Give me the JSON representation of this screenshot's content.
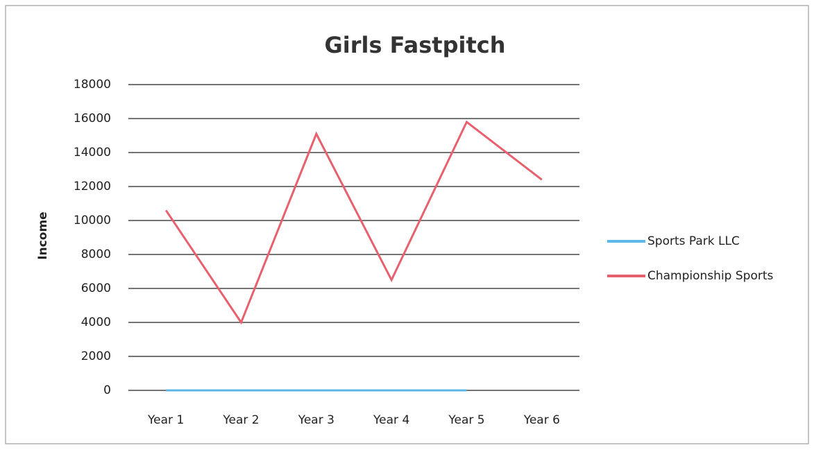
{
  "chart_data": {
    "type": "line",
    "title": "Girls Fastpitch",
    "y_label": "Income",
    "categories": [
      "Year 1",
      "Year 2",
      "Year 3",
      "Year 4",
      "Year 5",
      "Year 6"
    ],
    "series": [
      {
        "name": "Sports Park LLC",
        "color": "#5bb8e8",
        "values": [
          0,
          0,
          0,
          0,
          0,
          null
        ]
      },
      {
        "name": "Championship Sports",
        "color": "#e8606e",
        "values": [
          10600,
          4000,
          15100,
          6500,
          15800,
          12400
        ]
      }
    ],
    "ylim": [
      0,
      18000
    ],
    "yticks": [
      0,
      2000,
      4000,
      6000,
      8000,
      10000,
      12000,
      14000,
      16000,
      18000
    ],
    "grid": true,
    "legend": "right"
  }
}
